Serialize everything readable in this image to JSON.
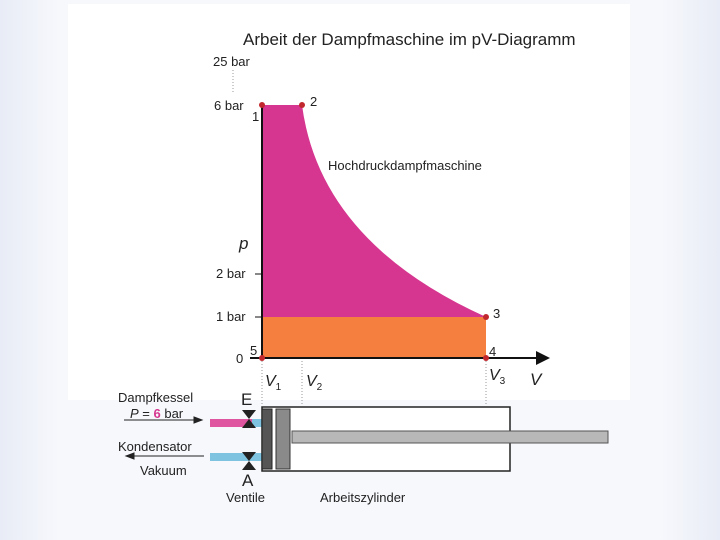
{
  "title": "Arbeit der Dampfmaschine im pV-Diagramm",
  "axes": {
    "p_label": "p",
    "v_label": "V",
    "p_ticks": {
      "p25": "25 bar",
      "p6": "6 bar",
      "p2": "2 bar",
      "p1": "1 bar",
      "p0": "0"
    },
    "v_ticks": {
      "v1": "V",
      "v1_sub": "1",
      "v2": "V",
      "v2_sub": "2",
      "v3": "V",
      "v3_sub": "3"
    }
  },
  "points": {
    "pt1": "1",
    "pt2": "2",
    "pt3": "3",
    "pt4": "4",
    "pt5": "5"
  },
  "area_label": "Hochdruckdampfmaschine",
  "cylinder": {
    "boiler_label": "Dampfkessel",
    "pressure_symbol": "P",
    "pressure_eq": " = ",
    "pressure_value": "6",
    "pressure_unit": " bar",
    "inlet_valve": "E",
    "condenser_label": "Kondensator",
    "vacuum_label": "Vakuum",
    "outlet_valve": "A",
    "valves_label": "Ventile",
    "cylinder_label": "Arbeitszylinder"
  },
  "colors": {
    "high_pressure_area": "#d6368f",
    "low_pressure_area": "#f57f3f",
    "steam_pipe": "#e0559f",
    "vacuum_pipe": "#7ec4e0",
    "point": "#c0282d",
    "pressure_value": "#d6368f"
  }
}
